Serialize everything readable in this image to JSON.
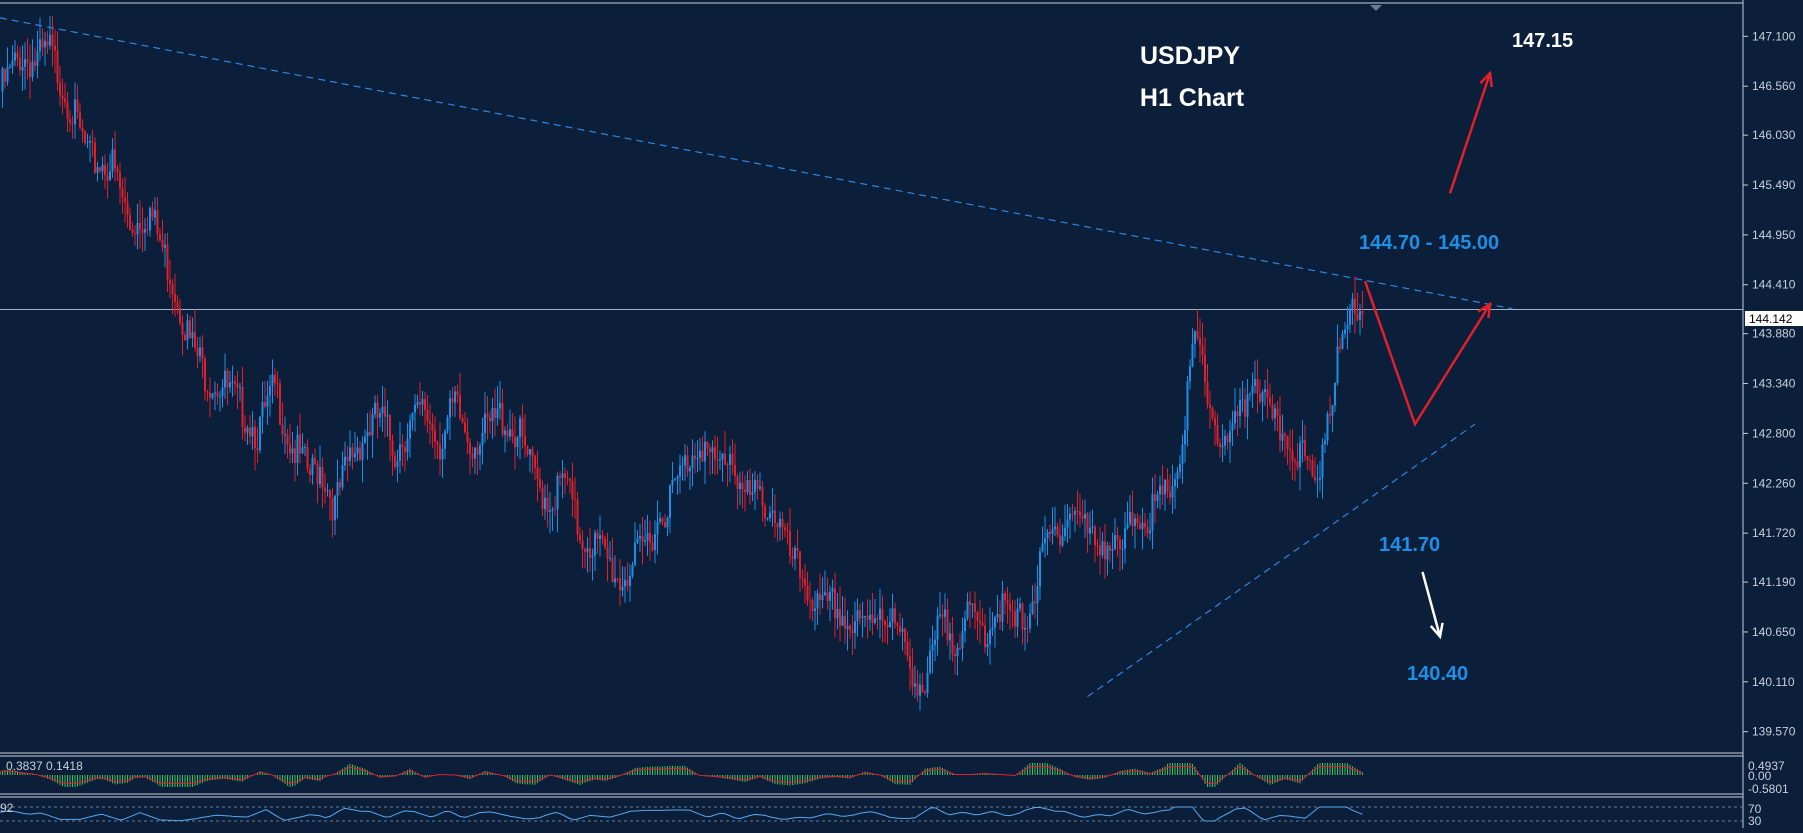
{
  "colors": {
    "background": "#0b1e3a",
    "axis_text": "#c8d0dc",
    "up_candle": "#1e8fe6",
    "down_candle": "#e0202a",
    "trendline": "#2f86e0",
    "macd_hist": "#3cc05a",
    "macd_signal": "#e0202a",
    "level_blue": "#1e8fe6",
    "arrow_red": "#e0202a",
    "arrow_white": "#ffffff"
  },
  "chart_data": {
    "type": "candlestick",
    "title": "USDJPY",
    "subtitle": "H1 Chart",
    "symbol": "USDJPY",
    "timeframe": "H1",
    "y_ticks": [
      "147.100",
      "146.560",
      "146.030",
      "145.490",
      "144.950",
      "144.410",
      "143.880",
      "143.340",
      "142.800",
      "142.260",
      "141.720",
      "141.190",
      "140.650",
      "140.110",
      "139.570"
    ],
    "ylim": [
      139.35,
      147.45
    ],
    "current_price": "144.142",
    "close_path": [
      [
        0,
        146.5
      ],
      [
        8,
        146.88
      ],
      [
        14,
        146.82
      ],
      [
        20,
        146.95
      ],
      [
        28,
        146.35
      ],
      [
        36,
        145.75
      ],
      [
        45,
        145.7
      ],
      [
        52,
        145.05
      ],
      [
        60,
        145.2
      ],
      [
        68,
        144.55
      ],
      [
        76,
        143.8
      ],
      [
        83,
        143.4
      ],
      [
        90,
        143.3
      ],
      [
        96,
        143.1
      ],
      [
        103,
        142.8
      ],
      [
        110,
        143.3
      ],
      [
        116,
        142.7
      ],
      [
        124,
        142.35
      ],
      [
        128,
        142.45
      ],
      [
        134,
        142.0
      ],
      [
        140,
        142.55
      ],
      [
        146,
        142.8
      ],
      [
        152,
        143.0
      ],
      [
        158,
        142.6
      ],
      [
        164,
        142.9
      ],
      [
        170,
        143.05
      ],
      [
        176,
        142.7
      ],
      [
        182,
        143.1
      ],
      [
        188,
        142.7
      ],
      [
        194,
        142.8
      ],
      [
        200,
        143.0
      ],
      [
        208,
        142.75
      ],
      [
        214,
        142.3
      ],
      [
        220,
        142.05
      ],
      [
        226,
        142.3
      ],
      [
        232,
        141.7
      ],
      [
        240,
        141.55
      ],
      [
        248,
        141.2
      ],
      [
        254,
        141.4
      ],
      [
        260,
        141.7
      ],
      [
        268,
        142.1
      ],
      [
        274,
        142.45
      ],
      [
        280,
        142.75
      ],
      [
        286,
        142.4
      ],
      [
        292,
        142.6
      ],
      [
        298,
        142.1
      ],
      [
        304,
        142.1
      ],
      [
        310,
        141.95
      ],
      [
        316,
        141.45
      ],
      [
        322,
        141.2
      ],
      [
        328,
        140.85
      ],
      [
        334,
        140.95
      ],
      [
        340,
        140.7
      ],
      [
        346,
        140.7
      ],
      [
        352,
        140.95
      ],
      [
        358,
        140.7
      ],
      [
        364,
        140.3
      ],
      [
        370,
        140.0
      ],
      [
        376,
        140.75
      ],
      [
        382,
        140.6
      ],
      [
        388,
        140.8
      ],
      [
        394,
        140.65
      ],
      [
        400,
        140.95
      ],
      [
        406,
        140.7
      ],
      [
        412,
        140.9
      ],
      [
        418,
        141.55
      ],
      [
        424,
        141.8
      ],
      [
        430,
        142.0
      ],
      [
        436,
        141.65
      ],
      [
        442,
        141.65
      ],
      [
        448,
        141.45
      ],
      [
        454,
        141.95
      ],
      [
        460,
        141.9
      ],
      [
        466,
        142.1
      ],
      [
        472,
        142.5
      ],
      [
        478,
        143.85
      ],
      [
        484,
        143.1
      ],
      [
        490,
        142.6
      ],
      [
        496,
        142.95
      ],
      [
        502,
        143.5
      ],
      [
        508,
        142.9
      ],
      [
        514,
        142.8
      ],
      [
        520,
        142.6
      ],
      [
        526,
        142.2
      ],
      [
        532,
        143.2
      ],
      [
        538,
        143.85
      ],
      [
        542,
        144.3
      ],
      [
        545,
        144.15
      ]
    ],
    "trendlines": [
      {
        "style": "dashed",
        "from": [
          0,
          147.3
        ],
        "to": [
          605,
          144.15
        ]
      },
      {
        "style": "dashed",
        "from": [
          435,
          139.95
        ],
        "to": [
          590,
          142.9
        ]
      }
    ],
    "annotations": [
      {
        "text": "147.15",
        "value": 147.15
      },
      {
        "text": "144.70 - 145.00",
        "value": "144.70 - 145.00"
      },
      {
        "text": "141.70",
        "value": 141.7
      },
      {
        "text": "140.40",
        "value": 140.4
      }
    ],
    "scenario_path_red": [
      [
        546,
        144.45
      ],
      [
        566,
        142.9
      ],
      [
        596,
        144.2
      ]
    ],
    "scenario_arrow_red_up": [
      [
        580,
        145.4
      ],
      [
        596,
        146.7
      ]
    ],
    "scenario_arrow_white_down": [
      [
        569,
        141.3
      ],
      [
        576,
        140.6
      ]
    ],
    "macd": {
      "label": "0.3837 0.1418",
      "y_ticks": [
        "0.4937",
        "0.00",
        "-0.5801"
      ]
    },
    "oscillator": {
      "label": "92",
      "y_ticks": [
        "70",
        "30"
      ]
    },
    "grid": false,
    "legend": "none"
  }
}
